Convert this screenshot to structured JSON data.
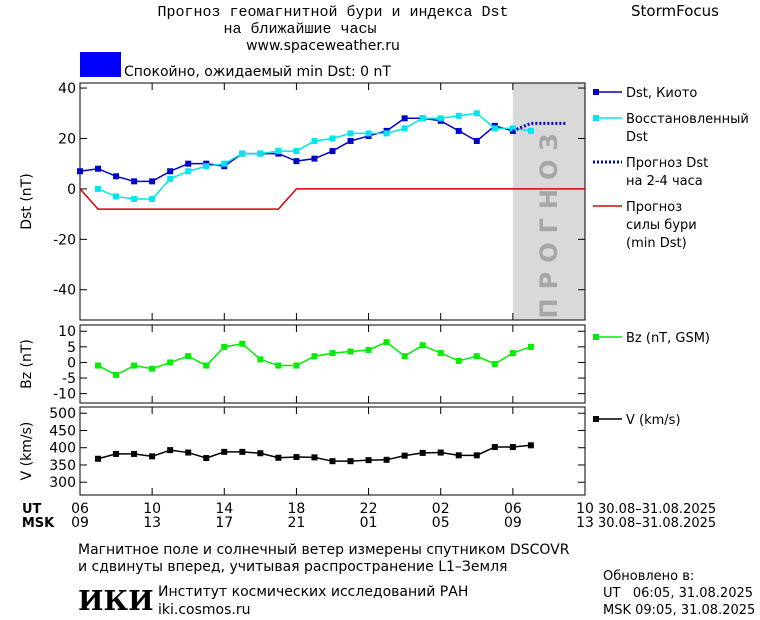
{
  "header": {
    "title": "Прогноз геомагнитной бури и индекса Dst",
    "subtitle": "на ближайшие часы",
    "url": "www.spaceweather.ru",
    "brand": "StormFocus"
  },
  "status": {
    "color": "#0000ff",
    "text": "Спокойно, ожидаемый min Dst: 0 nT"
  },
  "chart_data": [
    {
      "type": "line",
      "ylabel": "Dst (nT)",
      "xlim": [
        0,
        28
      ],
      "xticks": [
        0,
        4,
        8,
        12,
        16,
        20,
        24,
        28
      ],
      "ylim": [
        -52,
        42
      ],
      "yticks": [
        40,
        20,
        0,
        -20,
        -40
      ],
      "forecast_band": {
        "range": [
          24,
          28
        ],
        "label": "ПРОГНОЗ",
        "color": "#d9d9d9",
        "text_color": "#a6a6a6"
      },
      "series": [
        {
          "name": [
            "Dst, Киото"
          ],
          "color": "#0000cc",
          "style": "solid",
          "marker": "square",
          "x": [
            0,
            1,
            2,
            3,
            4,
            5,
            6,
            7,
            8,
            9,
            10,
            11,
            12,
            13,
            14,
            15,
            16,
            17,
            18,
            19,
            20,
            21,
            22,
            23,
            24
          ],
          "values": [
            7,
            8,
            5,
            3,
            3,
            7,
            10,
            10,
            9,
            14,
            14,
            14,
            11,
            12,
            15,
            19,
            21,
            23,
            28,
            28,
            27,
            23,
            19,
            25,
            23
          ]
        },
        {
          "name": [
            "Восстановленный",
            "Dst"
          ],
          "color": "#00e5ee",
          "style": "solid",
          "marker": "square",
          "x": [
            1,
            2,
            3,
            4,
            5,
            6,
            7,
            8,
            9,
            10,
            11,
            12,
            13,
            14,
            15,
            16,
            17,
            18,
            19,
            20,
            21,
            22,
            23,
            24,
            25
          ],
          "values": [
            0,
            -3,
            -4,
            -4,
            4,
            7,
            9,
            10,
            14,
            14,
            15,
            15,
            19,
            20,
            22,
            22,
            22,
            24,
            28,
            28,
            29,
            30,
            24,
            24,
            23
          ]
        },
        {
          "name": [
            "Прогноз Dst",
            "на 2-4 часа"
          ],
          "color": "#0000cc",
          "style": "dotted",
          "marker": "none",
          "x": [
            24,
            25,
            27
          ],
          "values": [
            23,
            26,
            26
          ]
        },
        {
          "name": [
            "Прогноз",
            "силы бури",
            "(min Dst)"
          ],
          "color": "#dd0000",
          "style": "solid",
          "marker": "none",
          "x": [
            0,
            1,
            11,
            12,
            28
          ],
          "values": [
            0,
            -8,
            -8,
            0,
            0
          ]
        }
      ]
    },
    {
      "type": "line",
      "ylabel": "Bz (nT)",
      "xlim": [
        0,
        28
      ],
      "xticks": [
        0,
        4,
        8,
        12,
        16,
        20,
        24,
        28
      ],
      "ylim": [
        -13,
        12
      ],
      "yticks": [
        10,
        5,
        0,
        -5,
        -10
      ],
      "series": [
        {
          "name": [
            "Bz (nT, GSM)"
          ],
          "color": "#00ee00",
          "style": "solid",
          "marker": "square",
          "x": [
            1,
            2,
            3,
            4,
            5,
            6,
            7,
            8,
            9,
            10,
            11,
            12,
            13,
            14,
            15,
            16,
            17,
            18,
            19,
            20,
            21,
            22,
            23,
            24,
            25
          ],
          "values": [
            -1,
            -4,
            -1,
            -2,
            0,
            2,
            -1,
            5,
            6,
            1,
            -1,
            -1,
            2,
            3,
            3.5,
            4,
            6.5,
            2,
            5.5,
            3,
            0.5,
            2,
            -0.5,
            3,
            5
          ]
        }
      ]
    },
    {
      "type": "line",
      "ylabel": "V (km/s)",
      "xlim": [
        0,
        28
      ],
      "xticks": [
        {
          "value": 0,
          "label": "06"
        },
        {
          "value": 4,
          "label": "10"
        },
        {
          "value": 8,
          "label": "14"
        },
        {
          "value": 12,
          "label": "18"
        },
        {
          "value": 16,
          "label": "22"
        },
        {
          "value": 20,
          "label": "02"
        },
        {
          "value": 24,
          "label": "06"
        },
        {
          "value": 28,
          "label": "10"
        }
      ],
      "xticks2": [
        {
          "value": 0,
          "label": "09"
        },
        {
          "value": 4,
          "label": "13"
        },
        {
          "value": 8,
          "label": "17"
        },
        {
          "value": 12,
          "label": "21"
        },
        {
          "value": 16,
          "label": "01"
        },
        {
          "value": 20,
          "label": "05"
        },
        {
          "value": 24,
          "label": "09"
        },
        {
          "value": 28,
          "label": "13"
        }
      ],
      "xlabel": "UT",
      "x2label": "MSK",
      "xrange_label": "30.08–31.08.2025",
      "x2range_label": "30.08–31.08.2025",
      "ylim": [
        263,
        518
      ],
      "yticks": [
        500,
        450,
        400,
        350,
        300
      ],
      "series": [
        {
          "name": [
            "V (km/s)"
          ],
          "color": "#000000",
          "style": "solid",
          "marker": "square",
          "x": [
            1,
            2,
            3,
            4,
            5,
            6,
            7,
            8,
            9,
            10,
            11,
            12,
            13,
            14,
            15,
            16,
            17,
            18,
            19,
            20,
            21,
            22,
            23,
            24,
            25
          ],
          "values": [
            368,
            382,
            382,
            375,
            393,
            386,
            370,
            388,
            388,
            384,
            371,
            373,
            372,
            361,
            361,
            364,
            365,
            377,
            385,
            386,
            378,
            378,
            402,
            402,
            407
          ]
        }
      ]
    }
  ],
  "footer": {
    "note1": "Магнитное поле и солнечный ветер измерены спутником DSCOVR",
    "note2": "и сдвинуты вперед, учитывая распространение L1–Земля",
    "logo": "ИКИ",
    "institute": "Институт космических исследований РАН",
    "site": "iki.cosmos.ru",
    "updated": "Обновлено в:",
    "updated_ut": "UT   06:05, 31.08.2025",
    "updated_msk": "MSK 09:05, 31.08.2025"
  }
}
